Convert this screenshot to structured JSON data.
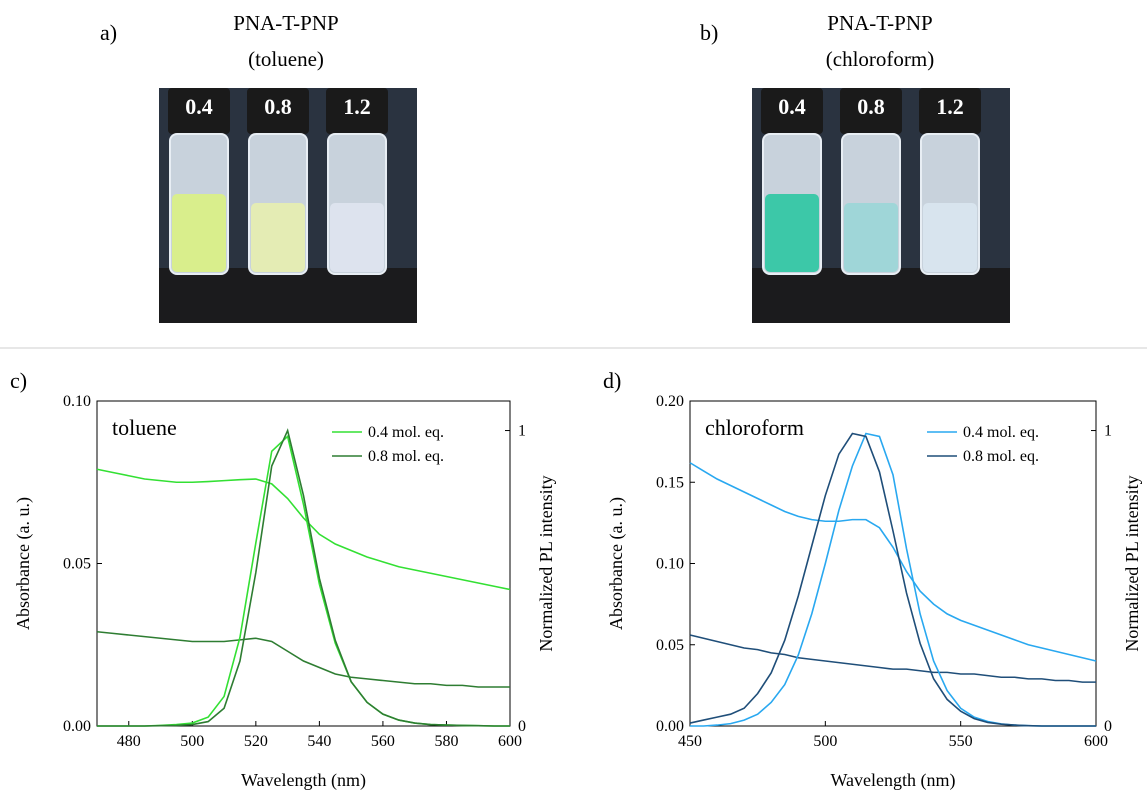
{
  "photos": [
    {
      "label": "a)",
      "title": "PNA-T-PNP",
      "subtitle": "(toluene)",
      "vial_labels": [
        "0.4",
        "0.8",
        "1.2"
      ]
    },
    {
      "label": "b)",
      "title": "PNA-T-PNP",
      "subtitle": "(chloroform)",
      "vial_labels": [
        "0.4",
        "0.8",
        "1.2"
      ]
    }
  ],
  "chart_data": [
    {
      "type": "line",
      "panel_label": "c)",
      "annotation": "toluene",
      "x_label": "Wavelength (nm)",
      "y_label": "Absorbance (a. u.)",
      "y2_label": "Normalized PL intensity",
      "xlim": [
        470,
        600
      ],
      "xticks": [
        480,
        500,
        520,
        540,
        560,
        580,
        600
      ],
      "ylim": [
        0,
        0.1
      ],
      "yticks": [
        {
          "value": 0,
          "label": "0.00"
        },
        {
          "value": 0.05,
          "label": "0.05"
        },
        {
          "value": 0.1,
          "label": "0.10"
        }
      ],
      "y2lim": [
        0,
        1.1
      ],
      "y2ticks": [
        0,
        1
      ],
      "x": [
        470,
        475,
        480,
        485,
        490,
        495,
        500,
        505,
        510,
        515,
        520,
        525,
        530,
        535,
        540,
        545,
        550,
        555,
        560,
        565,
        570,
        575,
        580,
        585,
        590,
        595,
        600
      ],
      "series": [
        {
          "name": "0.4 mol. eq.",
          "color": "#33e033",
          "values": [
            0.079,
            0.078,
            0.077,
            0.076,
            0.0755,
            0.075,
            0.075,
            0.0752,
            0.0755,
            0.0758,
            0.076,
            0.0745,
            0.07,
            0.064,
            0.059,
            0.056,
            0.054,
            0.052,
            0.0505,
            0.049,
            0.048,
            0.047,
            0.046,
            0.045,
            0.044,
            0.043,
            0.042
          ]
        },
        {
          "name": "0.8 mol. eq.",
          "color": "#2e7d32",
          "values": [
            0.029,
            0.0285,
            0.028,
            0.0275,
            0.027,
            0.0265,
            0.026,
            0.026,
            0.026,
            0.0265,
            0.027,
            0.026,
            0.023,
            0.02,
            0.018,
            0.016,
            0.015,
            0.0145,
            0.014,
            0.0135,
            0.013,
            0.013,
            0.0125,
            0.0125,
            0.012,
            0.012,
            0.012
          ]
        },
        {
          "axis": "y2",
          "color": "#33e033",
          "values": [
            0,
            0,
            0,
            0,
            0.002,
            0.005,
            0.01,
            0.03,
            0.1,
            0.3,
            0.62,
            0.93,
            0.98,
            0.75,
            0.48,
            0.28,
            0.15,
            0.08,
            0.04,
            0.02,
            0.01,
            0.005,
            0.003,
            0.002,
            0.001,
            0,
            0
          ]
        },
        {
          "axis": "y2",
          "color": "#2e7d32",
          "values": [
            0,
            0,
            0,
            0,
            0.001,
            0.002,
            0.005,
            0.015,
            0.06,
            0.22,
            0.52,
            0.88,
            1.0,
            0.78,
            0.5,
            0.29,
            0.15,
            0.08,
            0.04,
            0.02,
            0.01,
            0.005,
            0.003,
            0.002,
            0.001,
            0,
            0
          ]
        }
      ],
      "legend": "upper right"
    },
    {
      "type": "line",
      "panel_label": "d)",
      "annotation": "chloroform",
      "x_label": "Wavelength (nm)",
      "y_label": "Absorbance (a. u.)",
      "y2_label": "Normalized PL intensity",
      "xlim": [
        450,
        600
      ],
      "xticks": [
        450,
        500,
        550,
        600
      ],
      "ylim": [
        0,
        0.2
      ],
      "yticks": [
        {
          "value": 0,
          "label": "0.00"
        },
        {
          "value": 0.05,
          "label": "0.05"
        },
        {
          "value": 0.1,
          "label": "0.10"
        },
        {
          "value": 0.15,
          "label": "0.15"
        },
        {
          "value": 0.2,
          "label": "0.20"
        }
      ],
      "y2lim": [
        0,
        1.1
      ],
      "y2ticks": [
        0,
        1
      ],
      "x": [
        450,
        455,
        460,
        465,
        470,
        475,
        480,
        485,
        490,
        495,
        500,
        505,
        510,
        515,
        520,
        525,
        530,
        535,
        540,
        545,
        550,
        555,
        560,
        565,
        570,
        575,
        580,
        585,
        590,
        595,
        600
      ],
      "series": [
        {
          "name": "0.4 mol. eq.",
          "color": "#29a8f0",
          "values": [
            0.162,
            0.157,
            0.152,
            0.148,
            0.144,
            0.14,
            0.136,
            0.132,
            0.129,
            0.127,
            0.126,
            0.126,
            0.127,
            0.127,
            0.122,
            0.11,
            0.095,
            0.083,
            0.075,
            0.069,
            0.065,
            0.062,
            0.059,
            0.056,
            0.053,
            0.05,
            0.048,
            0.046,
            0.044,
            0.042,
            0.04
          ]
        },
        {
          "name": "0.8 mol. eq.",
          "color": "#1f4e79",
          "values": [
            0.056,
            0.054,
            0.052,
            0.05,
            0.048,
            0.047,
            0.045,
            0.044,
            0.042,
            0.041,
            0.04,
            0.039,
            0.038,
            0.037,
            0.036,
            0.035,
            0.035,
            0.034,
            0.033,
            0.033,
            0.032,
            0.032,
            0.031,
            0.03,
            0.03,
            0.029,
            0.029,
            0.028,
            0.028,
            0.027,
            0.027
          ]
        },
        {
          "axis": "y2",
          "color": "#29a8f0",
          "values": [
            0,
            0,
            0.003,
            0.008,
            0.02,
            0.04,
            0.08,
            0.14,
            0.24,
            0.38,
            0.55,
            0.73,
            0.88,
            0.99,
            0.98,
            0.85,
            0.6,
            0.38,
            0.22,
            0.12,
            0.06,
            0.03,
            0.015,
            0.007,
            0.003,
            0.001,
            0,
            0,
            0,
            0,
            0
          ]
        },
        {
          "axis": "y2",
          "color": "#1f4e79",
          "values": [
            0.01,
            0.02,
            0.03,
            0.04,
            0.06,
            0.11,
            0.18,
            0.29,
            0.44,
            0.61,
            0.78,
            0.92,
            0.99,
            0.98,
            0.86,
            0.66,
            0.45,
            0.28,
            0.16,
            0.09,
            0.05,
            0.025,
            0.012,
            0.006,
            0.003,
            0.001,
            0,
            0,
            0,
            0,
            0
          ]
        }
      ],
      "legend": "upper right"
    }
  ]
}
